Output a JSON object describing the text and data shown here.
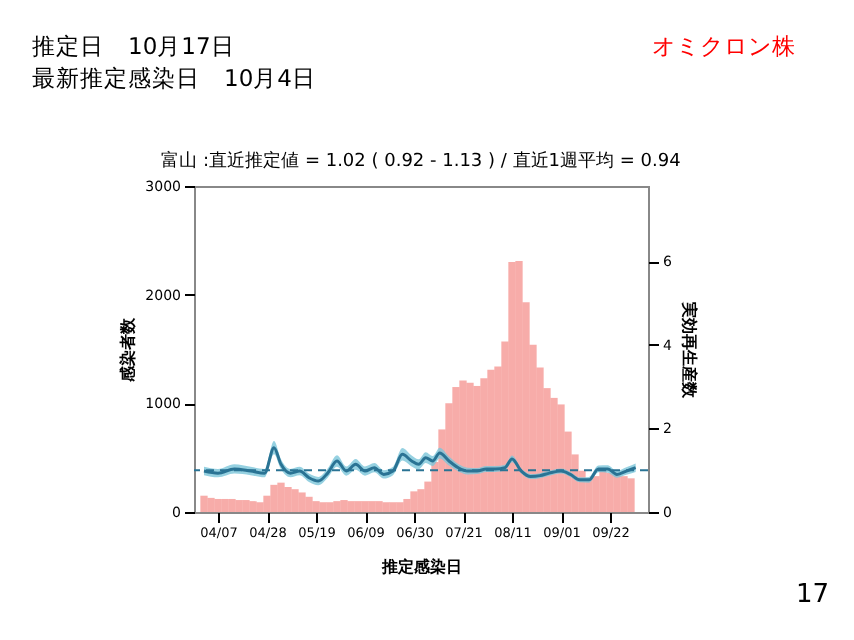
{
  "chart_data": {
    "type": "bar",
    "title": "富山 :直近推定値 = 1.02 ( 0.92 - 1.13 ) / 直近1週平均 = 0.94",
    "xlabel": "推定感染日",
    "ylabel": "感染者数",
    "y2label": "実効再生産数",
    "annotations": [
      "推定日　10月17日",
      "最新推定感染日　10月4日",
      "オミクロン株",
      "17"
    ],
    "xlim": [
      "--04-01",
      "--10-04"
    ],
    "xticks": [
      {
        "value": "--04-07",
        "label": "04/07"
      },
      {
        "value": "--04-28",
        "label": "04/28"
      },
      {
        "value": "--05-19",
        "label": "05/19"
      },
      {
        "value": "--06-09",
        "label": "06/09"
      },
      {
        "value": "--06-30",
        "label": "06/30"
      },
      {
        "value": "--07-21",
        "label": "07/21"
      },
      {
        "value": "--08-11",
        "label": "08/11"
      },
      {
        "value": "--09-01",
        "label": "09/01"
      },
      {
        "value": "--09-22",
        "label": "09/22"
      }
    ],
    "ylim": [
      0,
      3000
    ],
    "yticks": [
      0,
      1000,
      2000,
      3000
    ],
    "y2lim": [
      0,
      7.8
    ],
    "y2ticks": [
      0,
      2,
      4,
      6
    ],
    "grid": false,
    "series": [
      {
        "color": "#f6a3a0",
        "x": [
          "--04-01",
          "--04-04",
          "--04-07",
          "--04-10",
          "--04-13",
          "--04-16",
          "--04-19",
          "--04-22",
          "--04-25",
          "--04-28",
          "--05-01",
          "--05-04",
          "--05-07",
          "--05-10",
          "--05-13",
          "--05-16",
          "--05-19",
          "--05-22",
          "--05-25",
          "--05-28",
          "--05-31",
          "--06-03",
          "--06-06",
          "--06-09",
          "--06-12",
          "--06-15",
          "--06-18",
          "--06-21",
          "--06-24",
          "--06-27",
          "--06-30",
          "--07-03",
          "--07-06",
          "--07-09",
          "--07-12",
          "--07-15",
          "--07-18",
          "--07-21",
          "--07-24",
          "--07-27",
          "--07-30",
          "--08-02",
          "--08-05",
          "--08-08",
          "--08-11",
          "--08-14",
          "--08-17",
          "--08-20",
          "--08-23",
          "--08-26",
          "--08-29",
          "--09-01",
          "--09-04",
          "--09-07",
          "--09-10",
          "--09-13",
          "--09-16",
          "--09-19",
          "--09-22",
          "--09-25",
          "--09-28",
          "--10-01"
        ],
        "values": [
          150,
          130,
          120,
          120,
          120,
          110,
          110,
          100,
          90,
          150,
          250,
          270,
          230,
          210,
          180,
          140,
          100,
          90,
          90,
          100,
          110,
          100,
          100,
          100,
          100,
          100,
          90,
          90,
          90,
          120,
          190,
          210,
          280,
          460,
          760,
          1000,
          1150,
          1210,
          1190,
          1160,
          1230,
          1310,
          1340,
          1570,
          2300,
          2310,
          1930,
          1540,
          1330,
          1140,
          1050,
          990,
          740,
          530,
          380,
          310,
          330,
          380,
          360,
          340,
          330,
          310
        ]
      },
      {
        "type": "line",
        "axis": "y2",
        "color": "#2a7394",
        "x": [
          "--04-01",
          "--04-07",
          "--04-14",
          "--04-21",
          "--04-27",
          "--05-01",
          "--05-04",
          "--05-08",
          "--05-12",
          "--05-16",
          "--05-20",
          "--05-24",
          "--05-28",
          "--06-01",
          "--06-05",
          "--06-09",
          "--06-13",
          "--06-17",
          "--06-21",
          "--06-25",
          "--06-29",
          "--07-02",
          "--07-05",
          "--07-08",
          "--07-11",
          "--07-15",
          "--07-19",
          "--07-23",
          "--07-27",
          "--07-31",
          "--08-04",
          "--08-08",
          "--08-11",
          "--08-15",
          "--08-19",
          "--08-23",
          "--08-27",
          "--09-01",
          "--09-05",
          "--09-09",
          "--09-13",
          "--09-17",
          "--09-21",
          "--09-25",
          "--09-29",
          "--10-03"
        ],
        "values": [
          0.98,
          0.93,
          1.03,
          0.98,
          0.93,
          1.54,
          1.14,
          0.93,
          0.98,
          0.82,
          0.74,
          0.93,
          1.22,
          0.98,
          1.14,
          0.98,
          1.06,
          0.9,
          0.98,
          1.38,
          1.22,
          1.14,
          1.3,
          1.22,
          1.41,
          1.22,
          1.06,
          0.98,
          0.98,
          1.03,
          1.03,
          1.06,
          1.27,
          0.98,
          0.85,
          0.87,
          0.93,
          0.98,
          0.9,
          0.77,
          0.77,
          1.03,
          1.03,
          0.9,
          0.98,
          1.06
        ],
        "lower": [
          0.88,
          0.83,
          0.92,
          0.88,
          0.83,
          1.38,
          1.02,
          0.83,
          0.88,
          0.72,
          0.64,
          0.82,
          1.08,
          0.87,
          1.01,
          0.87,
          0.95,
          0.8,
          0.88,
          1.23,
          1.09,
          1.02,
          1.17,
          1.1,
          1.28,
          1.11,
          0.97,
          0.9,
          0.91,
          0.96,
          0.96,
          0.99,
          1.19,
          0.92,
          0.79,
          0.81,
          0.87,
          0.92,
          0.84,
          0.71,
          0.7,
          0.95,
          0.94,
          0.82,
          0.89,
          0.96
        ],
        "upper": [
          1.08,
          1.03,
          1.14,
          1.08,
          1.03,
          1.7,
          1.26,
          1.03,
          1.08,
          0.92,
          0.84,
          1.04,
          1.36,
          1.09,
          1.27,
          1.09,
          1.17,
          1.0,
          1.08,
          1.53,
          1.35,
          1.26,
          1.43,
          1.34,
          1.54,
          1.33,
          1.15,
          1.06,
          1.05,
          1.1,
          1.1,
          1.13,
          1.35,
          1.04,
          0.91,
          0.93,
          0.99,
          1.04,
          0.96,
          0.83,
          0.84,
          1.11,
          1.12,
          0.98,
          1.07,
          1.16
        ]
      }
    ],
    "ref_lines": [
      {
        "axis": "y2",
        "value": 1,
        "line_style": "dashed",
        "color": "#2a7394"
      }
    ]
  }
}
